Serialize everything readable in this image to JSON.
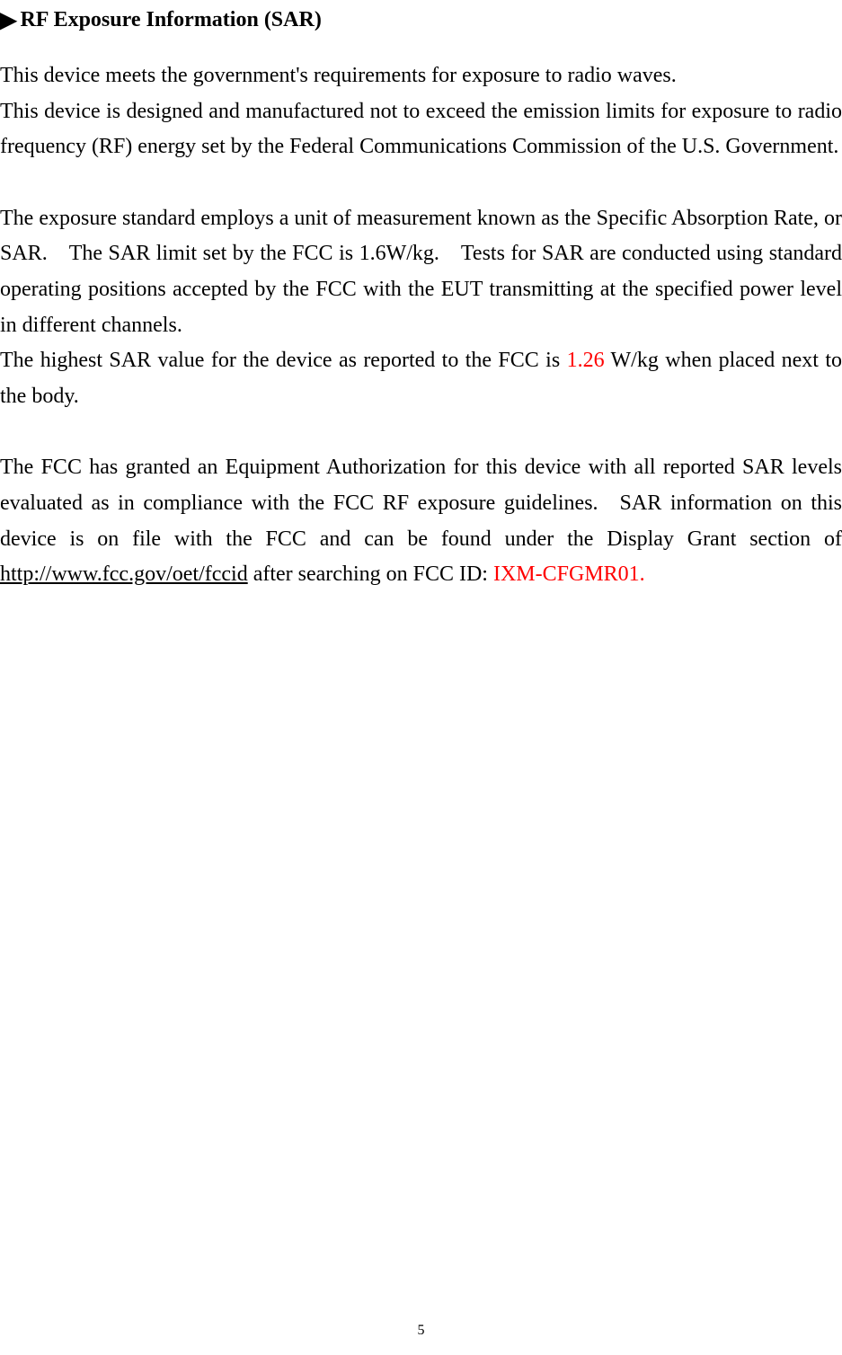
{
  "heading": {
    "marker": "▶",
    "text": "RF Exposure Information (SAR)"
  },
  "paragraphs": {
    "p1_line1": "This device meets the government's requirements for exposure to radio waves.",
    "p1_line2": "This device is designed and manufactured not to exceed the emission limits for exposure to radio frequency (RF) energy set by the Federal Communications Commission of the U.S. Government.",
    "p2": "The exposure standard employs a unit of measurement known as the Specific Absorption Rate, or SAR. The SAR limit set by the FCC is 1.6W/kg. Tests for SAR are conducted using standard operating positions accepted by the FCC with the EUT transmitting at the specified power level in different channels.",
    "p3_before": "The highest SAR value for the device as reported to the FCC is ",
    "p3_highlight": "1.26",
    "p3_after": " W/kg when placed next to the body.",
    "p4_before": "The FCC has granted an Equipment Authorization for this device with all reported SAR levels evaluated as in compliance with the FCC RF exposure guidelines. SAR information on this device is on file with the FCC and can be found under the Display Grant section of ",
    "p4_link": "http://www.fcc.gov/oet/fccid",
    "p4_middle": " after searching on FCC ID: ",
    "p4_highlight": "IXM-CFGMR01."
  },
  "pageNumber": "5",
  "colors": {
    "text": "#000000",
    "highlight": "#ff0000",
    "background": "#ffffff"
  },
  "typography": {
    "heading_fontsize": 24,
    "body_fontsize": 24,
    "pagenum_fontsize": 16,
    "font_family": "Times New Roman"
  }
}
